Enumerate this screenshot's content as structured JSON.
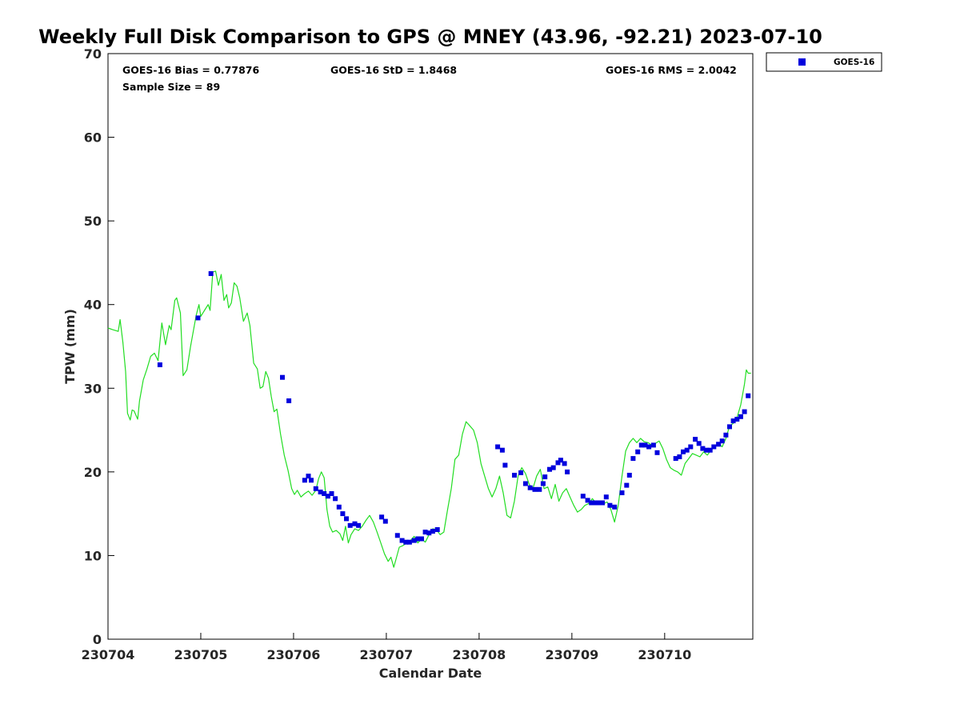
{
  "chart_data": {
    "type": "scatter",
    "title": "Weekly Full Disk Comparison to GPS @ MNEY (43.96, -92.21) 2023-07-10",
    "xlabel": "Calendar Date",
    "ylabel": "TPW (mm)",
    "xlim": [
      0,
      6.95
    ],
    "ylim": [
      0,
      70
    ],
    "x_ticks": [
      {
        "value": 0,
        "label": "230704"
      },
      {
        "value": 1,
        "label": "230705"
      },
      {
        "value": 2,
        "label": "230706"
      },
      {
        "value": 3,
        "label": "230707"
      },
      {
        "value": 4,
        "label": "230708"
      },
      {
        "value": 5,
        "label": "230709"
      },
      {
        "value": 6,
        "label": "230710"
      }
    ],
    "y_ticks": [
      0,
      10,
      20,
      30,
      40,
      50,
      60,
      70
    ],
    "grid": false,
    "legend_position": "top-right, outside plot",
    "stats": {
      "bias": "GOES-16 Bias = 0.77876",
      "std": "GOES-16 StD = 1.8468",
      "rms": "GOES-16 RMS = 2.0042",
      "sample": "Sample Size = 89"
    },
    "series": [
      {
        "name": "GOES-16",
        "kind": "scatter",
        "marker": "square",
        "color": "#0000dd",
        "points": [
          [
            0.56,
            32.8
          ],
          [
            0.97,
            38.4
          ],
          [
            1.11,
            43.7
          ],
          [
            1.88,
            31.3
          ],
          [
            1.95,
            28.5
          ],
          [
            2.12,
            19.0
          ],
          [
            2.16,
            19.5
          ],
          [
            2.19,
            19.0
          ],
          [
            2.24,
            18.0
          ],
          [
            2.29,
            17.6
          ],
          [
            2.33,
            17.4
          ],
          [
            2.37,
            17.1
          ],
          [
            2.41,
            17.4
          ],
          [
            2.45,
            16.8
          ],
          [
            2.49,
            15.8
          ],
          [
            2.53,
            15.0
          ],
          [
            2.57,
            14.4
          ],
          [
            2.61,
            13.6
          ],
          [
            2.66,
            13.8
          ],
          [
            2.7,
            13.6
          ],
          [
            2.95,
            14.6
          ],
          [
            2.99,
            14.1
          ],
          [
            3.12,
            12.4
          ],
          [
            3.17,
            11.8
          ],
          [
            3.21,
            11.6
          ],
          [
            3.25,
            11.6
          ],
          [
            3.3,
            11.8
          ],
          [
            3.34,
            12.0
          ],
          [
            3.38,
            12.0
          ],
          [
            3.42,
            12.8
          ],
          [
            3.46,
            12.7
          ],
          [
            3.5,
            12.9
          ],
          [
            3.55,
            13.1
          ],
          [
            4.2,
            23.0
          ],
          [
            4.25,
            22.6
          ],
          [
            4.28,
            20.8
          ],
          [
            4.38,
            19.6
          ],
          [
            4.45,
            19.9
          ],
          [
            4.5,
            18.6
          ],
          [
            4.55,
            18.1
          ],
          [
            4.6,
            17.9
          ],
          [
            4.65,
            17.9
          ],
          [
            4.69,
            18.6
          ],
          [
            4.71,
            19.4
          ],
          [
            4.76,
            20.3
          ],
          [
            4.8,
            20.5
          ],
          [
            4.85,
            21.1
          ],
          [
            4.88,
            21.4
          ],
          [
            4.92,
            21.0
          ],
          [
            4.95,
            20.0
          ],
          [
            5.12,
            17.1
          ],
          [
            5.17,
            16.6
          ],
          [
            5.21,
            16.3
          ],
          [
            5.25,
            16.3
          ],
          [
            5.29,
            16.3
          ],
          [
            5.33,
            16.3
          ],
          [
            5.37,
            17.0
          ],
          [
            5.41,
            16.0
          ],
          [
            5.46,
            15.8
          ],
          [
            5.54,
            17.5
          ],
          [
            5.59,
            18.4
          ],
          [
            5.62,
            19.6
          ],
          [
            5.66,
            21.6
          ],
          [
            5.71,
            22.4
          ],
          [
            5.75,
            23.2
          ],
          [
            5.79,
            23.2
          ],
          [
            5.83,
            23.0
          ],
          [
            5.88,
            23.2
          ],
          [
            5.92,
            22.3
          ],
          [
            6.12,
            21.6
          ],
          [
            6.16,
            21.8
          ],
          [
            6.2,
            22.4
          ],
          [
            6.24,
            22.6
          ],
          [
            6.28,
            23.0
          ],
          [
            6.33,
            23.9
          ],
          [
            6.37,
            23.4
          ],
          [
            6.41,
            22.8
          ],
          [
            6.45,
            22.6
          ],
          [
            6.49,
            22.6
          ],
          [
            6.53,
            23.0
          ],
          [
            6.58,
            23.3
          ],
          [
            6.62,
            23.7
          ],
          [
            6.66,
            24.4
          ],
          [
            6.7,
            25.4
          ],
          [
            6.74,
            26.1
          ],
          [
            6.78,
            26.3
          ],
          [
            6.82,
            26.6
          ],
          [
            6.86,
            27.2
          ],
          [
            6.9,
            29.1
          ]
        ]
      },
      {
        "name": "",
        "kind": "line",
        "color": "#22dd22",
        "points": [
          [
            0.0,
            37.2
          ],
          [
            0.05,
            37.0
          ],
          [
            0.11,
            36.8
          ],
          [
            0.13,
            38.2
          ],
          [
            0.16,
            35.5
          ],
          [
            0.19,
            32.0
          ],
          [
            0.21,
            27.0
          ],
          [
            0.24,
            26.2
          ],
          [
            0.26,
            27.4
          ],
          [
            0.28,
            27.3
          ],
          [
            0.32,
            26.3
          ],
          [
            0.34,
            28.5
          ],
          [
            0.38,
            31.0
          ],
          [
            0.42,
            32.3
          ],
          [
            0.46,
            33.8
          ],
          [
            0.5,
            34.2
          ],
          [
            0.54,
            33.3
          ],
          [
            0.58,
            37.8
          ],
          [
            0.62,
            35.2
          ],
          [
            0.66,
            37.5
          ],
          [
            0.68,
            37.0
          ],
          [
            0.72,
            40.5
          ],
          [
            0.74,
            40.8
          ],
          [
            0.78,
            39.0
          ],
          [
            0.81,
            31.5
          ],
          [
            0.85,
            32.2
          ],
          [
            0.89,
            35.0
          ],
          [
            0.95,
            38.7
          ],
          [
            0.98,
            40.0
          ],
          [
            1.0,
            38.6
          ],
          [
            1.04,
            39.3
          ],
          [
            1.08,
            40.0
          ],
          [
            1.1,
            39.3
          ],
          [
            1.13,
            43.9
          ],
          [
            1.16,
            44.0
          ],
          [
            1.19,
            42.3
          ],
          [
            1.22,
            43.6
          ],
          [
            1.25,
            40.5
          ],
          [
            1.28,
            41.2
          ],
          [
            1.3,
            39.6
          ],
          [
            1.33,
            40.2
          ],
          [
            1.36,
            42.6
          ],
          [
            1.39,
            42.2
          ],
          [
            1.42,
            40.8
          ],
          [
            1.46,
            38.0
          ],
          [
            1.5,
            39.0
          ],
          [
            1.53,
            37.5
          ],
          [
            1.57,
            33.0
          ],
          [
            1.61,
            32.3
          ],
          [
            1.64,
            30.0
          ],
          [
            1.67,
            30.2
          ],
          [
            1.7,
            32.0
          ],
          [
            1.73,
            31.2
          ],
          [
            1.76,
            29.0
          ],
          [
            1.79,
            27.2
          ],
          [
            1.82,
            27.5
          ],
          [
            1.86,
            24.5
          ],
          [
            1.9,
            22.0
          ],
          [
            1.94,
            20.2
          ],
          [
            1.98,
            18.0
          ],
          [
            2.01,
            17.3
          ],
          [
            2.04,
            17.8
          ],
          [
            2.08,
            17.0
          ],
          [
            2.12,
            17.4
          ],
          [
            2.16,
            17.7
          ],
          [
            2.2,
            17.2
          ],
          [
            2.24,
            17.8
          ],
          [
            2.27,
            19.2
          ],
          [
            2.3,
            20.0
          ],
          [
            2.33,
            19.3
          ],
          [
            2.36,
            15.5
          ],
          [
            2.39,
            13.5
          ],
          [
            2.42,
            12.8
          ],
          [
            2.46,
            13.0
          ],
          [
            2.5,
            12.6
          ],
          [
            2.53,
            11.8
          ],
          [
            2.56,
            13.5
          ],
          [
            2.59,
            11.5
          ],
          [
            2.62,
            12.5
          ],
          [
            2.66,
            13.2
          ],
          [
            2.7,
            13.0
          ],
          [
            2.74,
            13.5
          ],
          [
            2.78,
            14.2
          ],
          [
            2.82,
            14.8
          ],
          [
            2.86,
            14.0
          ],
          [
            2.9,
            12.8
          ],
          [
            2.94,
            11.5
          ],
          [
            2.98,
            10.2
          ],
          [
            3.02,
            9.3
          ],
          [
            3.05,
            9.8
          ],
          [
            3.08,
            8.6
          ],
          [
            3.11,
            9.8
          ],
          [
            3.14,
            11.0
          ],
          [
            3.18,
            11.2
          ],
          [
            3.22,
            11.5
          ],
          [
            3.26,
            11.8
          ],
          [
            3.3,
            12.3
          ],
          [
            3.34,
            11.5
          ],
          [
            3.38,
            12.0
          ],
          [
            3.42,
            11.6
          ],
          [
            3.46,
            12.5
          ],
          [
            3.5,
            13.2
          ],
          [
            3.54,
            13.1
          ],
          [
            3.58,
            12.5
          ],
          [
            3.62,
            12.8
          ],
          [
            3.66,
            15.5
          ],
          [
            3.7,
            18.0
          ],
          [
            3.74,
            21.5
          ],
          [
            3.78,
            22.0
          ],
          [
            3.82,
            24.5
          ],
          [
            3.86,
            26.0
          ],
          [
            3.9,
            25.5
          ],
          [
            3.94,
            25.0
          ],
          [
            3.98,
            23.5
          ],
          [
            4.02,
            21.0
          ],
          [
            4.06,
            19.5
          ],
          [
            4.1,
            18.0
          ],
          [
            4.14,
            17.0
          ],
          [
            4.18,
            18.0
          ],
          [
            4.22,
            19.5
          ],
          [
            4.26,
            17.5
          ],
          [
            4.3,
            14.8
          ],
          [
            4.34,
            14.5
          ],
          [
            4.38,
            16.5
          ],
          [
            4.42,
            19.5
          ],
          [
            4.46,
            20.5
          ],
          [
            4.5,
            19.8
          ],
          [
            4.54,
            18.5
          ],
          [
            4.58,
            18.0
          ],
          [
            4.62,
            19.5
          ],
          [
            4.66,
            20.3
          ],
          [
            4.7,
            18.0
          ],
          [
            4.74,
            18.2
          ],
          [
            4.78,
            16.8
          ],
          [
            4.82,
            18.5
          ],
          [
            4.86,
            16.5
          ],
          [
            4.9,
            17.5
          ],
          [
            4.94,
            18.0
          ],
          [
            4.98,
            17.0
          ],
          [
            5.02,
            16.0
          ],
          [
            5.06,
            15.2
          ],
          [
            5.1,
            15.5
          ],
          [
            5.14,
            16.0
          ],
          [
            5.18,
            16.2
          ],
          [
            5.22,
            16.8
          ],
          [
            5.26,
            16.3
          ],
          [
            5.3,
            16.5
          ],
          [
            5.34,
            16.2
          ],
          [
            5.38,
            16.4
          ],
          [
            5.42,
            15.5
          ],
          [
            5.46,
            14.0
          ],
          [
            5.5,
            16.0
          ],
          [
            5.54,
            19.5
          ],
          [
            5.58,
            22.5
          ],
          [
            5.62,
            23.5
          ],
          [
            5.66,
            24.0
          ],
          [
            5.7,
            23.5
          ],
          [
            5.74,
            24.0
          ],
          [
            5.78,
            23.6
          ],
          [
            5.82,
            23.5
          ],
          [
            5.86,
            23.2
          ],
          [
            5.9,
            23.4
          ],
          [
            5.94,
            23.7
          ],
          [
            5.98,
            22.8
          ],
          [
            6.02,
            21.5
          ],
          [
            6.06,
            20.5
          ],
          [
            6.1,
            20.2
          ],
          [
            6.14,
            20.0
          ],
          [
            6.18,
            19.6
          ],
          [
            6.22,
            21.0
          ],
          [
            6.26,
            21.6
          ],
          [
            6.3,
            22.2
          ],
          [
            6.34,
            22.0
          ],
          [
            6.38,
            21.8
          ],
          [
            6.42,
            22.4
          ],
          [
            6.46,
            22.0
          ],
          [
            6.5,
            22.6
          ],
          [
            6.54,
            23.0
          ],
          [
            6.58,
            23.4
          ],
          [
            6.62,
            23.0
          ],
          [
            6.66,
            24.0
          ],
          [
            6.7,
            25.5
          ],
          [
            6.74,
            25.8
          ],
          [
            6.78,
            26.5
          ],
          [
            6.82,
            28.0
          ],
          [
            6.86,
            30.5
          ],
          [
            6.88,
            32.2
          ],
          [
            6.9,
            31.8
          ],
          [
            6.93,
            31.8
          ]
        ]
      }
    ]
  }
}
